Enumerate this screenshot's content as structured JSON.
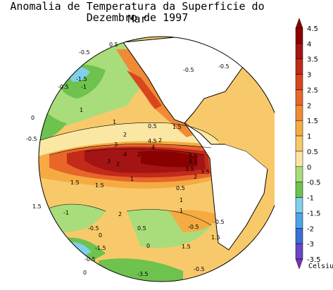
{
  "title": "Anomalia de Temperatura da Superficie do Mar",
  "subtitle": "Dezembro de 1997",
  "colorbar": {
    "unit": "Celsius",
    "ticks": [
      "4.5",
      "4",
      "3.5",
      "3",
      "2.5",
      "2",
      "1.5",
      "1",
      "0.5",
      "0",
      "-0.5",
      "-1",
      "-1.5",
      "-2",
      "-3",
      "-3.5"
    ],
    "colors": [
      "#8b0000",
      "#a51414",
      "#c22a1a",
      "#d9461e",
      "#e8662a",
      "#f08a36",
      "#f5ab42",
      "#f8c96a",
      "#fbe7a4",
      "#a9dc7a",
      "#6ec24e",
      "#7fd0e8",
      "#4aa6e6",
      "#3a6fd8",
      "#6a46c8"
    ]
  },
  "map_labels": [
    {
      "text": "-0.5"
    },
    {
      "text": "0.5"
    },
    {
      "text": "-1.5"
    },
    {
      "text": "-1"
    },
    {
      "text": "-0.5"
    },
    {
      "text": "0"
    },
    {
      "text": "-0.5"
    },
    {
      "text": "1"
    },
    {
      "text": "1"
    },
    {
      "text": "2"
    },
    {
      "text": "0.5"
    },
    {
      "text": "-0.5"
    },
    {
      "text": "-0.5"
    },
    {
      "text": "1.5"
    },
    {
      "text": "2"
    },
    {
      "text": "3"
    },
    {
      "text": "2"
    },
    {
      "text": "3"
    },
    {
      "text": "4"
    },
    {
      "text": "4"
    },
    {
      "text": "4.5"
    },
    {
      "text": "5.5"
    },
    {
      "text": "4.5"
    },
    {
      "text": "3.5"
    },
    {
      "text": "2"
    },
    {
      "text": "3.5"
    },
    {
      "text": "1"
    },
    {
      "text": "1.5"
    },
    {
      "text": "2"
    },
    {
      "text": "0.5"
    },
    {
      "text": "1.5"
    },
    {
      "text": "1.5"
    },
    {
      "text": "1"
    },
    {
      "text": "-1"
    },
    {
      "text": "-0.5"
    },
    {
      "text": "0.5"
    },
    {
      "text": "-0.5"
    },
    {
      "text": "-1.5"
    },
    {
      "text": "2"
    },
    {
      "text": "-0.5"
    },
    {
      "text": "0"
    },
    {
      "text": "-0.5"
    },
    {
      "text": "1.5"
    },
    {
      "text": "0"
    },
    {
      "text": "-3.5"
    },
    {
      "text": "-0.5"
    },
    {
      "text": "0"
    },
    {
      "text": "1.5"
    },
    {
      "text": "1"
    }
  ]
}
